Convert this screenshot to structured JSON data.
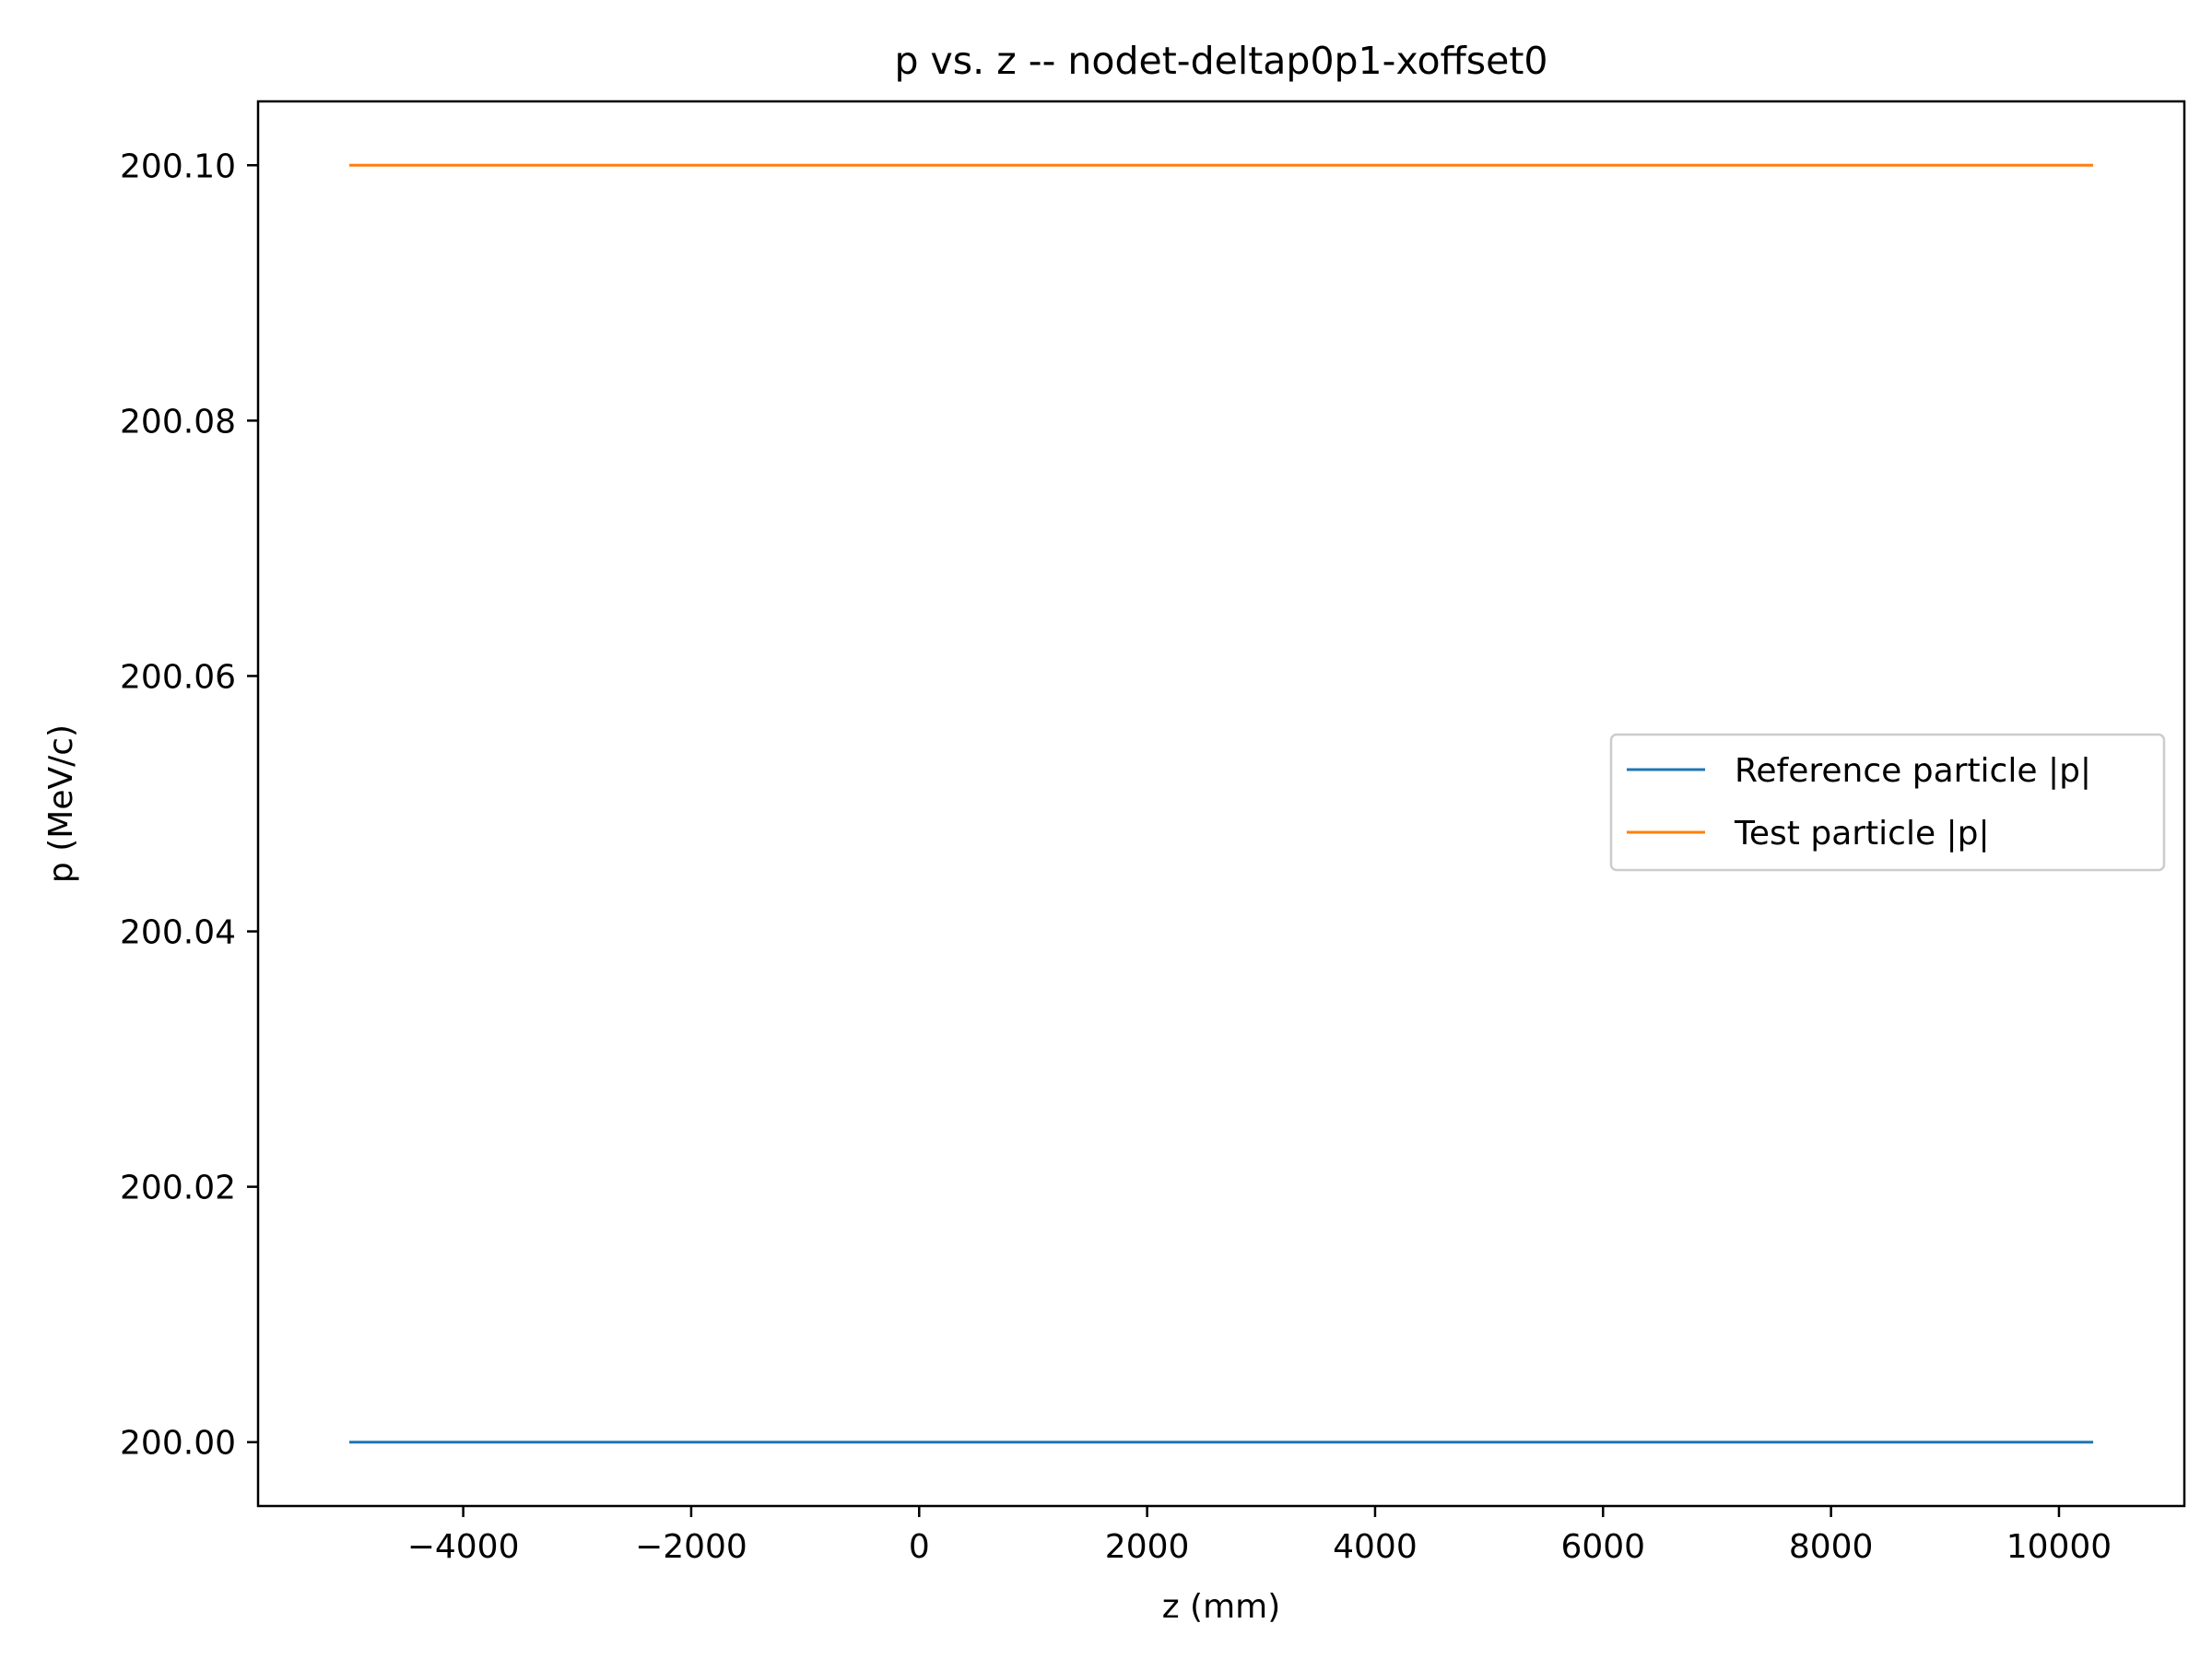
{
  "chart_data": {
    "type": "line",
    "title": "p vs. z -- nodet-deltap0p1-xoffset0",
    "xlabel": "z (mm)",
    "ylabel": "p (MeV/c)",
    "xlim": [
      -5800,
      11100
    ],
    "ylim": [
      199.995,
      200.105
    ],
    "xticks": [
      -4000,
      -2000,
      0,
      2000,
      4000,
      6000,
      8000,
      10000
    ],
    "xtick_labels": [
      "−4000",
      "−2000",
      "0",
      "2000",
      "4000",
      "6000",
      "8000",
      "10000"
    ],
    "yticks": [
      200.0,
      200.02,
      200.04,
      200.06,
      200.08,
      200.1
    ],
    "ytick_labels": [
      "200.00",
      "200.02",
      "200.04",
      "200.06",
      "200.08",
      "200.10"
    ],
    "grid": false,
    "legend_position": "center-right",
    "series": [
      {
        "name": "Reference particle |p|",
        "color": "#1f77b4",
        "x": [
          -5000,
          10300
        ],
        "y": [
          200.0,
          200.0
        ]
      },
      {
        "name": "Test particle |p|",
        "color": "#ff7f0e",
        "x": [
          -5000,
          10300
        ],
        "y": [
          200.1,
          200.1
        ]
      }
    ]
  }
}
